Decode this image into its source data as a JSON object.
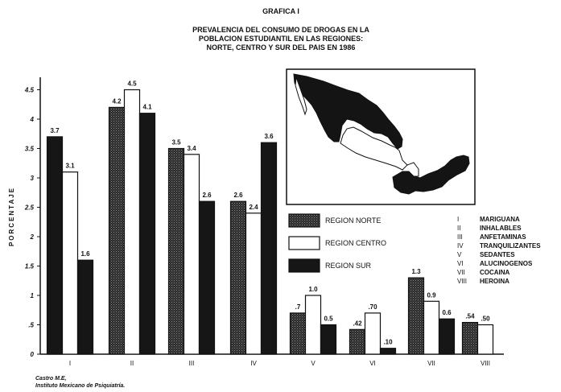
{
  "figure": {
    "label": "GRAFICA I",
    "title_lines": [
      "PREVALENCIA DEL CONSUMO DE DROGAS EN LA",
      "POBLACION ESTUDIANTIL EN LAS REGIONES:",
      "NORTE, CENTRO Y SUR DEL PAIS EN 1986"
    ],
    "source_lines": [
      "Castro M.E,",
      "Instituto Mexicano de Psiquiatría."
    ]
  },
  "chart_data": {
    "type": "bar",
    "title": "PREVALENCIA DEL CONSUMO DE DROGAS EN LA POBLACION ESTUDIANTIL EN LAS REGIONES: NORTE, CENTRO Y SUR DEL PAIS EN 1986",
    "xlabel": "",
    "ylabel": "PORCENTAJE",
    "categories": [
      "I",
      "II",
      "III",
      "IV",
      "V",
      "VI",
      "VII",
      "VIII"
    ],
    "series": [
      {
        "name": "REGION NORTE",
        "values": [
          null,
          4.2,
          3.5,
          2.6,
          0.7,
          0.42,
          1.3,
          0.54
        ],
        "labels": [
          "",
          "4.2",
          "3.5",
          "2.6",
          ".7",
          ".42",
          "1.3",
          ".54"
        ],
        "color": "#1a1a1a",
        "pattern": "dotted"
      },
      {
        "name": "REGION CENTRO",
        "values": [
          3.1,
          4.5,
          3.4,
          2.4,
          1.0,
          0.7,
          0.9,
          0.5
        ],
        "labels": [
          "3.1",
          "4.5",
          "3.4",
          "2.4",
          "1.0",
          ".70",
          "0.9",
          ".50"
        ],
        "color": "#ffffff",
        "pattern": "solid"
      },
      {
        "name": "REGION SUR",
        "values": [
          1.6,
          4.1,
          2.6,
          3.6,
          0.5,
          0.1,
          0.6,
          null
        ],
        "labels": [
          "1.6",
          "4.1",
          "2.6",
          "3.6",
          "0.5",
          ".10",
          "0.6",
          ""
        ],
        "color": "#161616",
        "pattern": "solid"
      }
    ],
    "unlabeled_bar": {
      "category": "I",
      "value": 3.7,
      "label": "3.7",
      "color": "#161616"
    },
    "ylim": [
      0,
      4.7
    ],
    "yticks": [
      0,
      0.5,
      1,
      1.5,
      2,
      2.5,
      3,
      3.5,
      4,
      4.5
    ],
    "ytick_labels": [
      "0",
      ".5",
      "1",
      "1.5",
      "2",
      "2.5",
      "3",
      "3.5",
      "4",
      "4.5"
    ],
    "grid": false,
    "legend_position": "middle-right",
    "drug_key": [
      {
        "numeral": "I",
        "name": "MARIGUANA"
      },
      {
        "numeral": "II",
        "name": "INHALABLES"
      },
      {
        "numeral": "III",
        "name": "ANFETAMINAS"
      },
      {
        "numeral": "IV",
        "name": "TRANQUILIZANTES"
      },
      {
        "numeral": "V",
        "name": "SEDANTES"
      },
      {
        "numeral": "VI",
        "name": "ALUCINOGENOS"
      },
      {
        "numeral": "VII",
        "name": "COCAINA"
      },
      {
        "numeral": "VIII",
        "name": "HEROINA"
      }
    ]
  }
}
